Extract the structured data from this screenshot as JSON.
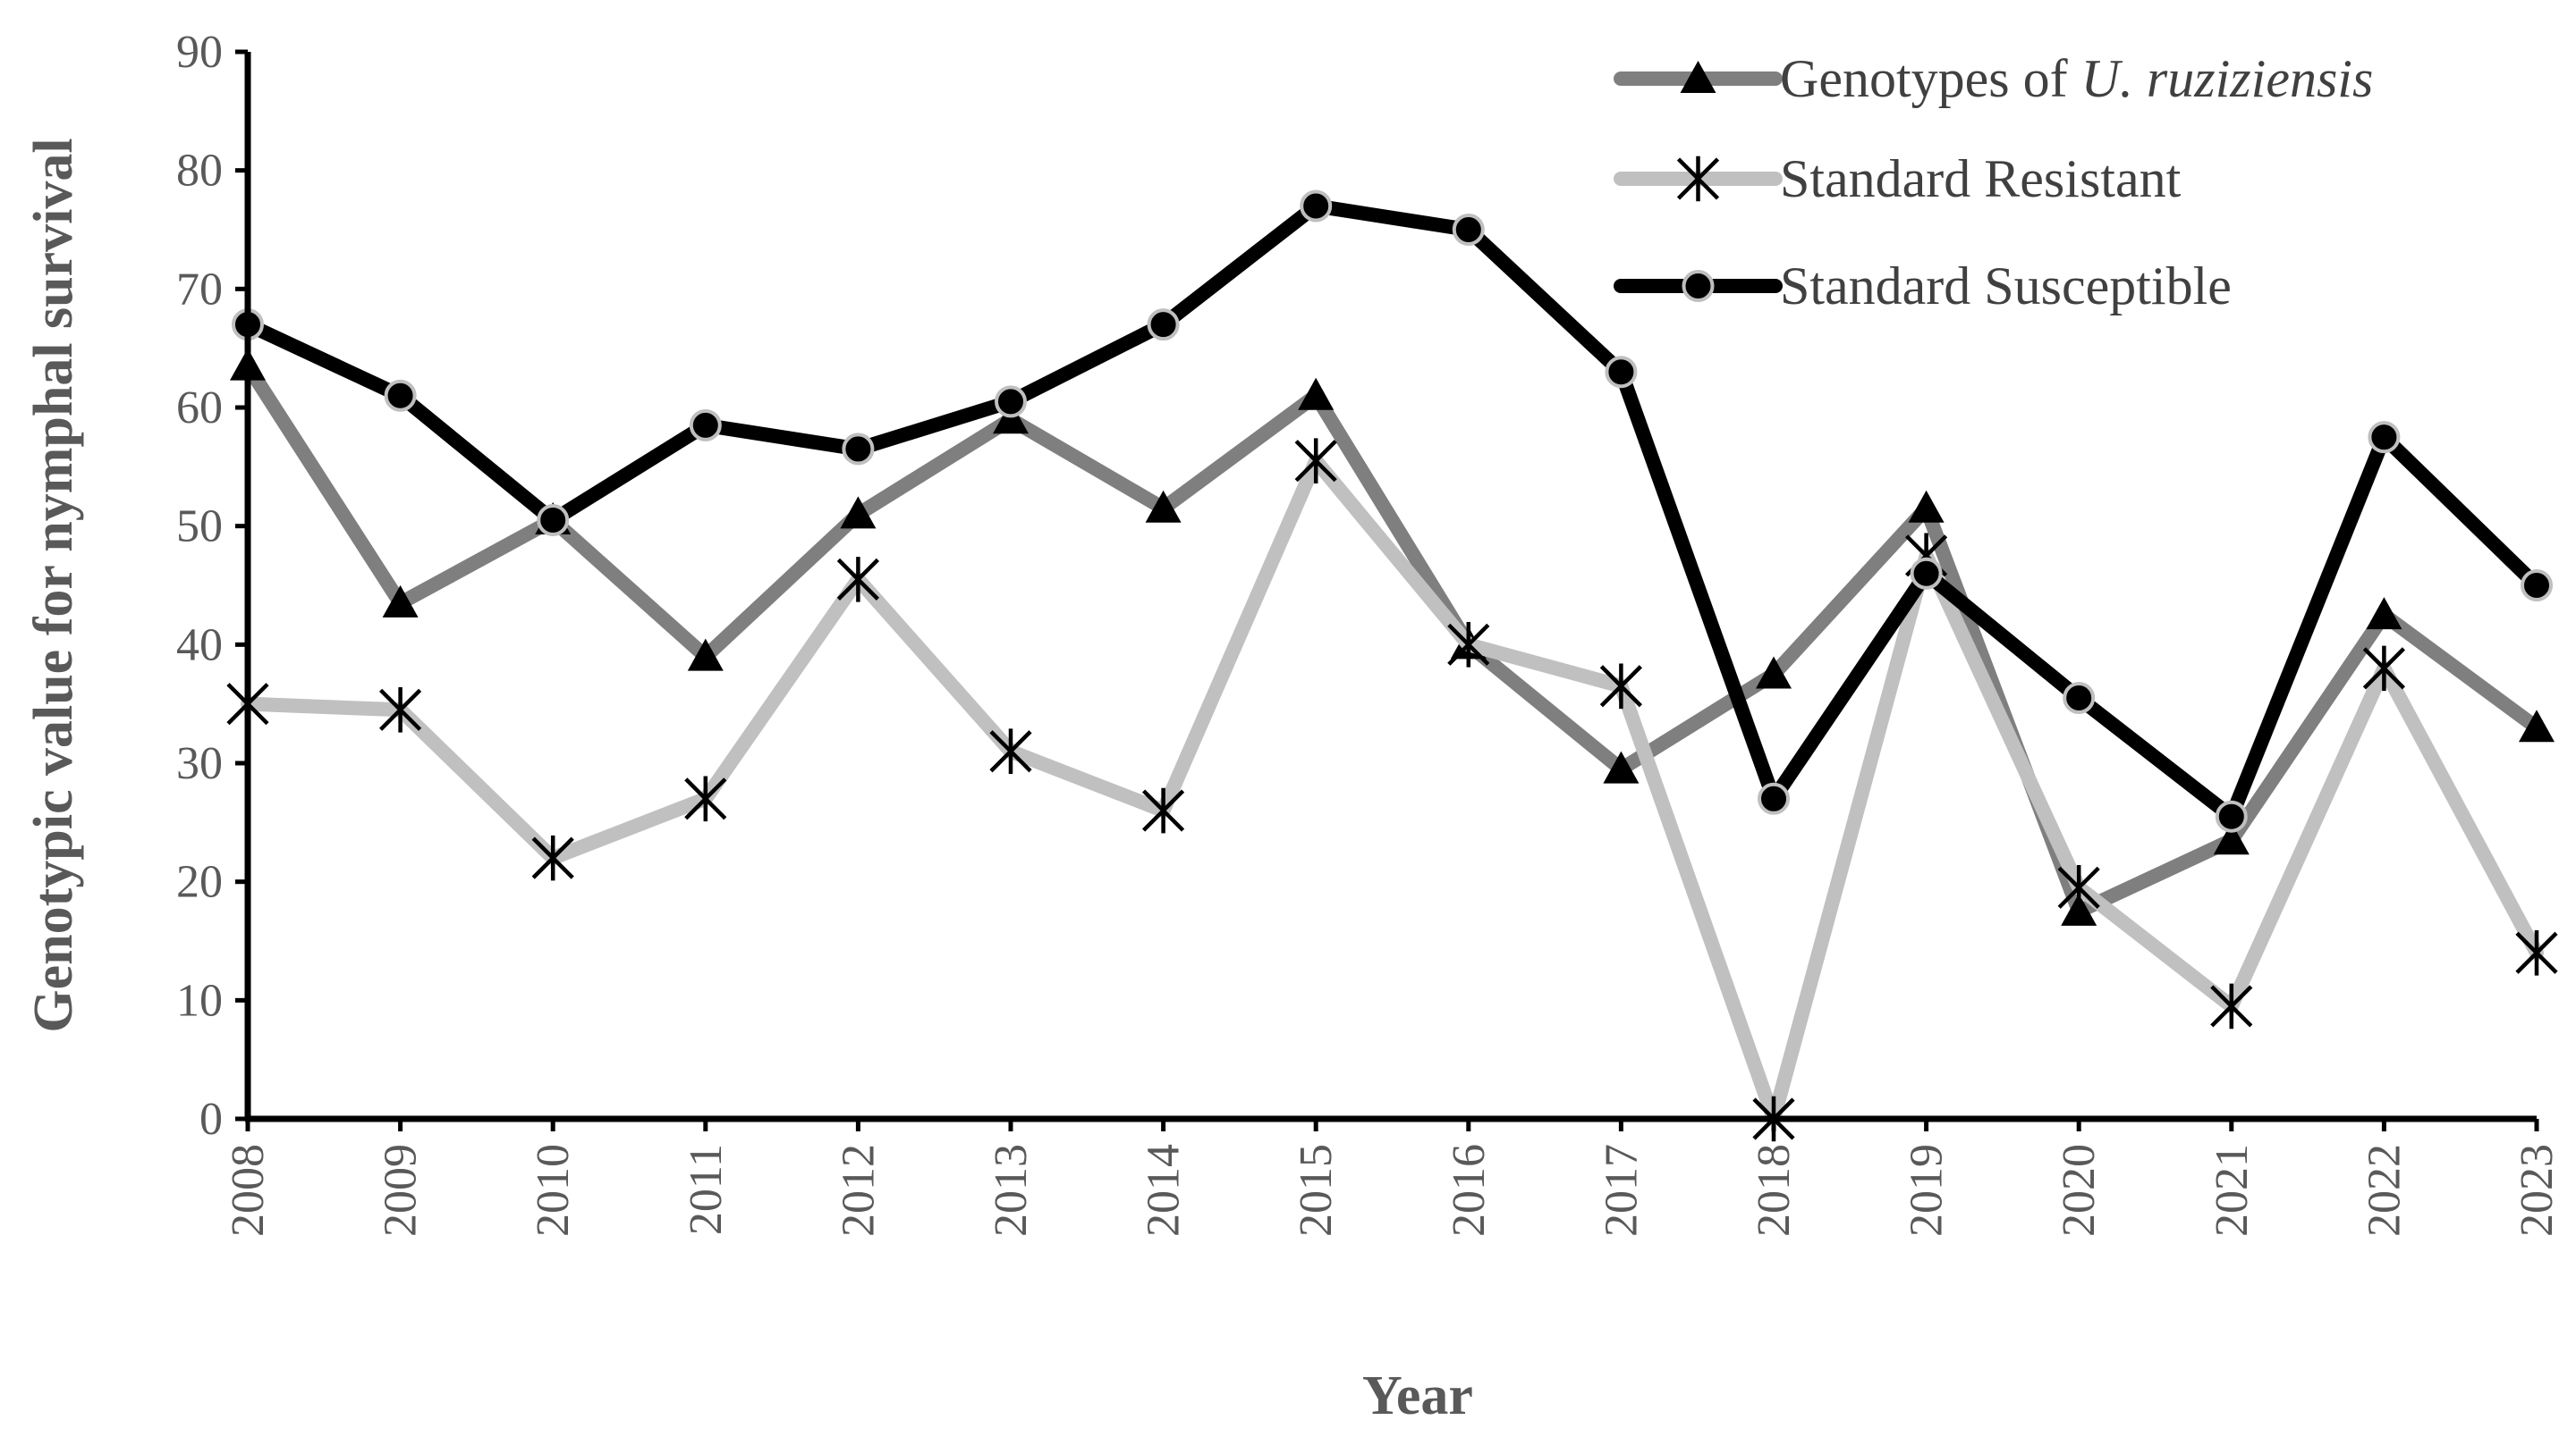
{
  "chart_data": {
    "type": "line",
    "title": "",
    "xlabel": "Year",
    "ylabel": "Genotypic value for nymphal survival",
    "ylim": [
      0,
      90
    ],
    "yticks": [
      0,
      10,
      20,
      30,
      40,
      50,
      60,
      70,
      80,
      90
    ],
    "categories": [
      "2008",
      "2009",
      "2010",
      "2011",
      "2012",
      "2013",
      "2014",
      "2015",
      "2016",
      "2017",
      "2018",
      "2019",
      "2020",
      "2021",
      "2022",
      "2023"
    ],
    "legend_position": "top-right",
    "series": [
      {
        "name": "Genotypes of U. ruziziensis",
        "legend_parts": [
          "Genotypes of ",
          "U. ruziziensis"
        ],
        "color": "#7f7f7f",
        "marker": "triangle",
        "values": [
          63.5,
          43.5,
          50.5,
          39,
          51,
          59,
          51.5,
          61,
          40,
          29.5,
          37.5,
          51.5,
          17.5,
          23.5,
          42.5,
          33
        ]
      },
      {
        "name": "Standard Resistant",
        "legend_parts": [
          "Standard Resistant"
        ],
        "color": "#c0c0c0",
        "marker": "asterisk",
        "values": [
          35,
          34.5,
          22,
          27,
          45.5,
          31,
          26,
          55.5,
          40,
          36.5,
          0,
          47.5,
          19.5,
          9.5,
          38,
          14
        ]
      },
      {
        "name": "Standard Susceptible",
        "legend_parts": [
          "Standard Susceptible"
        ],
        "color": "#000000",
        "marker": "circle",
        "values": [
          67,
          61,
          50.5,
          58.5,
          56.5,
          60.5,
          67,
          77,
          75,
          63,
          27,
          46,
          35.5,
          25.5,
          57.5,
          45
        ]
      }
    ]
  }
}
